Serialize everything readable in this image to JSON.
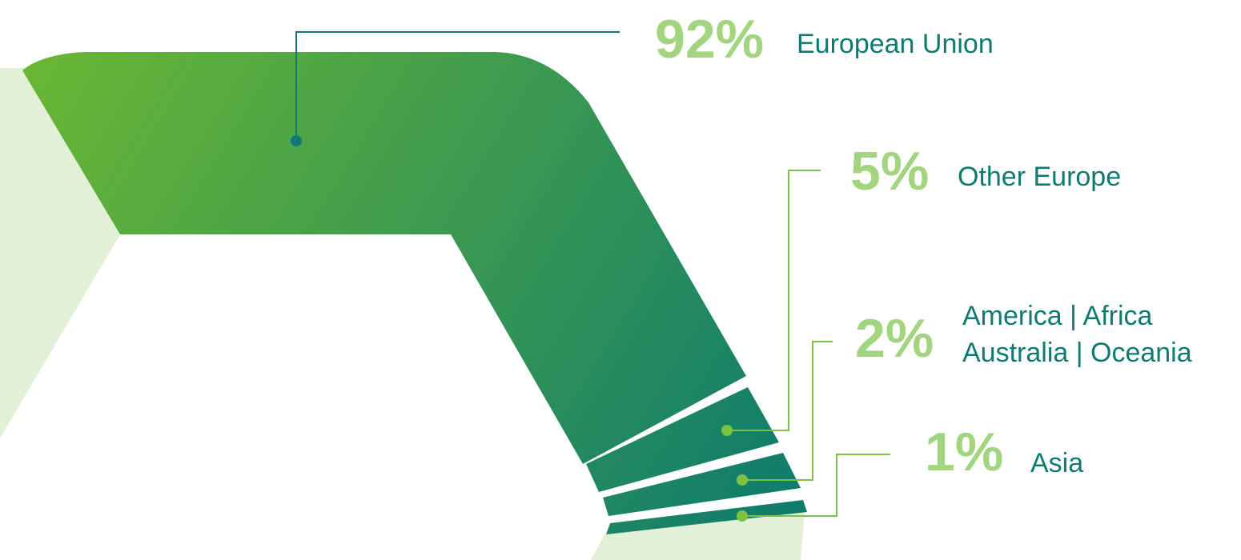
{
  "chart_data": {
    "type": "pie",
    "title": "",
    "colors": {
      "percent": "#a3d47f",
      "label": "#0f7a72",
      "background_ring": "#e3f0d8",
      "band_light": "#6ab734",
      "band_dark": "#0c7a6e",
      "leader_primary": "#11777a",
      "leader_secondary": "#7cc242",
      "separator": "#e3f0d8"
    },
    "slices": [
      {
        "percent_label": "92%",
        "value": 92,
        "label_lines": [
          "European Union"
        ]
      },
      {
        "percent_label": "5%",
        "value": 5,
        "label_lines": [
          "Other Europe"
        ]
      },
      {
        "percent_label": "2%",
        "value": 2,
        "label_lines": [
          "America | Africa",
          "Australia | Oceania"
        ]
      },
      {
        "percent_label": "1%",
        "value": 1,
        "label_lines": [
          "Asia"
        ]
      }
    ]
  }
}
